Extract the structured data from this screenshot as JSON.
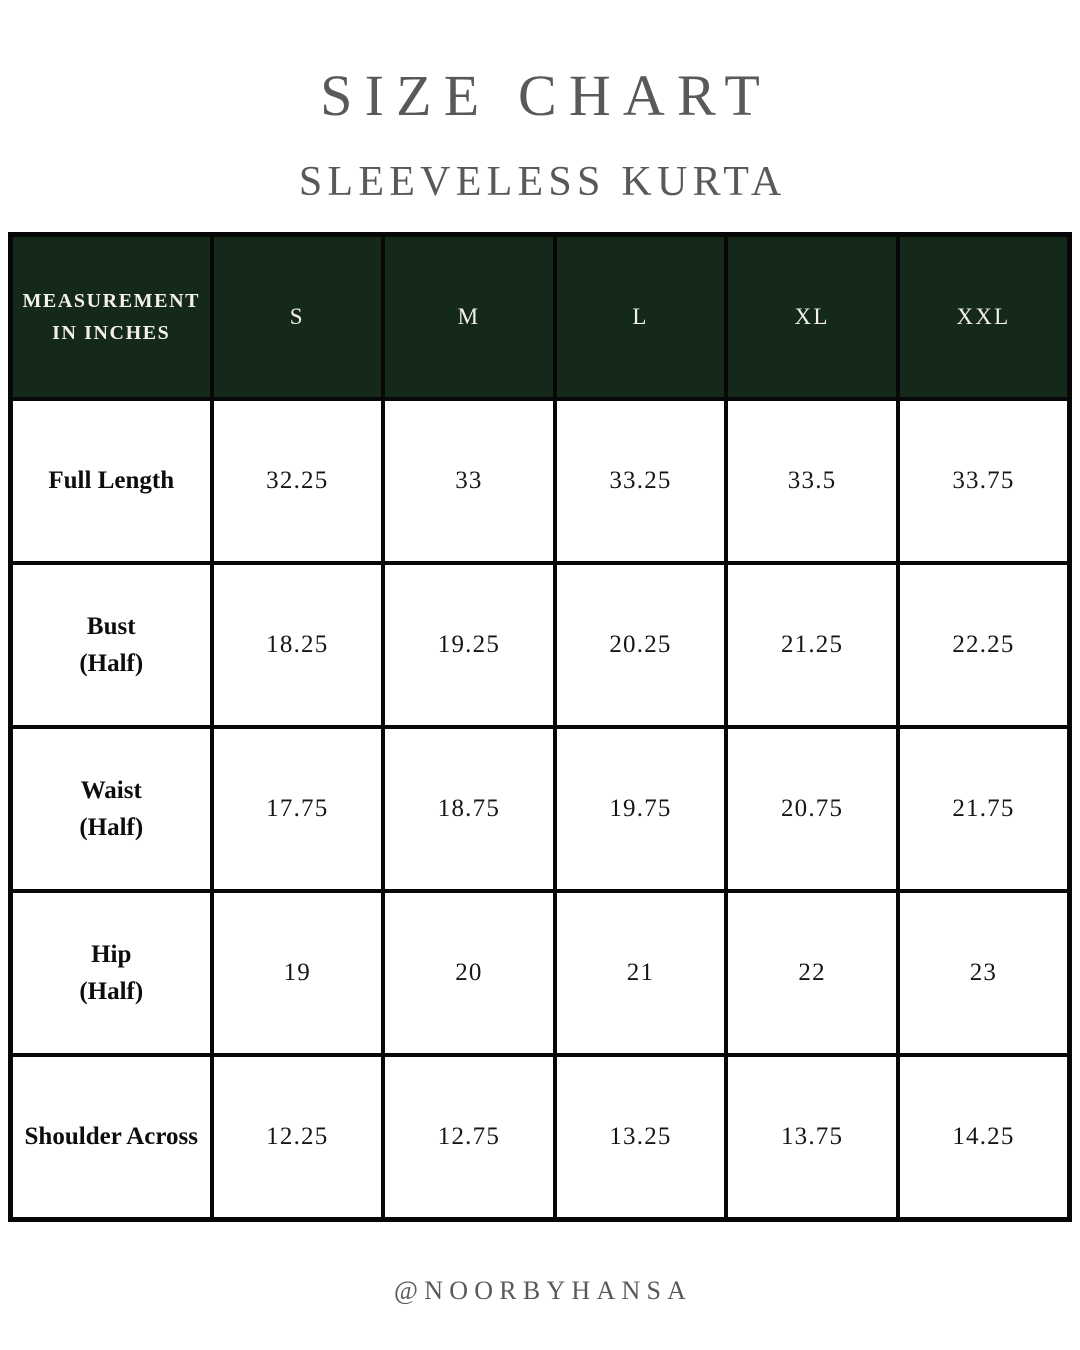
{
  "header": {
    "title": "SIZE CHART",
    "subtitle": "SLEEVELESS KURTA"
  },
  "footer": {
    "handle": "@NOORBYHANSA"
  },
  "colors": {
    "header_bg": "#15291b",
    "header_text": "#f4f1ea",
    "title_gray": "#59595b",
    "table_border": "#070707",
    "page_bg": "#ffffff"
  },
  "chart_data": {
    "type": "table",
    "title": "SIZE CHART",
    "subtitle": "SLEEVELESS KURTA",
    "columns": [
      "MEASUREMENT\nIN INCHES",
      "S",
      "M",
      "L",
      "XL",
      "XXL"
    ],
    "rows": [
      {
        "label": "Full Length",
        "values": [
          "32.25",
          "33",
          "33.25",
          "33.5",
          "33.75"
        ]
      },
      {
        "label": "Bust\n(Half)",
        "values": [
          "18.25",
          "19.25",
          "20.25",
          "21.25",
          "22.25"
        ]
      },
      {
        "label": "Waist\n(Half)",
        "values": [
          "17.75",
          "18.75",
          "19.75",
          "20.75",
          "21.75"
        ]
      },
      {
        "label": "Hip\n(Half)",
        "values": [
          "19",
          "20",
          "21",
          "22",
          "23"
        ]
      },
      {
        "label": "Shoulder Across",
        "values": [
          "12.25",
          "12.75",
          "13.25",
          "13.75",
          "14.25"
        ]
      }
    ],
    "layout": {
      "grid": "on",
      "header_style": "dark-green row, white text",
      "units": "inches"
    }
  }
}
